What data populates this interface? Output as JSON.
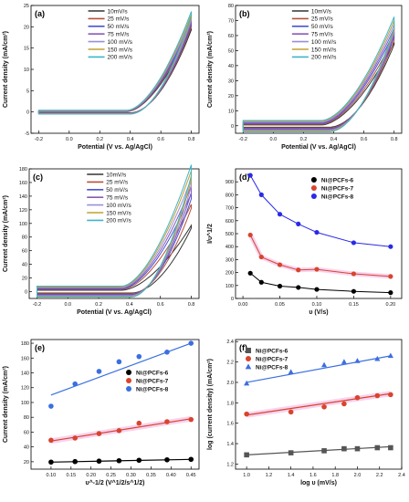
{
  "chart_data": [
    {
      "id": "a",
      "type": "line",
      "panel_label": "(a)",
      "xlabel": "Potential (V vs. Ag/AgCl)",
      "ylabel": "Current density (mA/cm²)",
      "xlim": [
        -0.25,
        0.85
      ],
      "ylim": [
        -5,
        25
      ],
      "xticks": [
        -0.2,
        0.0,
        0.2,
        0.4,
        0.6,
        0.8
      ],
      "yticks": [
        -5,
        0,
        5,
        10,
        15,
        20,
        25
      ],
      "legend": "top-left",
      "legend_entries": [
        "10mV/s",
        "25 mV/s",
        "50 mV/s",
        "75 mV/s",
        "100 mV/s",
        "150 mV/s",
        "200 mV/s"
      ],
      "colors": [
        "#333333",
        "#b5523b",
        "#4a54d1",
        "#8a5ab5",
        "#9b8fd8",
        "#c2a032",
        "#3fb5c8"
      ],
      "curve": {
        "x0": -0.2,
        "onset": 0.38,
        "xend": 0.8,
        "ends": [
          19.5,
          20.2,
          20.8,
          21.4,
          22.0,
          22.6,
          23.2
        ],
        "base_fwd": [
          0.1,
          0.15,
          0.2,
          0.25,
          0.3,
          0.35,
          0.4
        ],
        "base_rev": [
          -0.2,
          -0.25,
          -0.3,
          -0.35,
          -0.4,
          -0.45,
          -0.5
        ],
        "rev_shift": 0.02
      }
    },
    {
      "id": "b",
      "type": "line",
      "panel_label": "(b)",
      "xlabel": "Potential (V vs. Ag/AgCl)",
      "ylabel": "Current density (mA/cm²)",
      "xlim": [
        -0.25,
        0.85
      ],
      "ylim": [
        -5,
        80
      ],
      "xticks": [
        -0.2,
        0.0,
        0.2,
        0.4,
        0.6,
        0.8
      ],
      "yticks": [
        0,
        10,
        20,
        30,
        40,
        50,
        60,
        70,
        80
      ],
      "legend": "top-left",
      "legend_entries": [
        "10mV/s",
        "25 mV/s",
        "50 mV/s",
        "75 mV/s",
        "100 mV/s",
        "150 mV/s",
        "200 mV/s"
      ],
      "colors": [
        "#333333",
        "#b5523b",
        "#4a54d1",
        "#8a5ab5",
        "#9b8fd8",
        "#c2a032",
        "#3fb5c8"
      ],
      "curve": {
        "x0": -0.2,
        "onset": 0.32,
        "xend": 0.8,
        "ends": [
          55,
          58,
          61,
          63,
          65,
          67,
          69
        ],
        "base_fwd": [
          0.5,
          1.0,
          1.5,
          2.0,
          2.5,
          3.0,
          3.5
        ],
        "base_rev": [
          -1.0,
          -1.5,
          -2.0,
          -2.5,
          -3.0,
          -3.5,
          -4.0
        ],
        "rev_shift": 0.05
      }
    },
    {
      "id": "c",
      "type": "line",
      "panel_label": "(c)",
      "xlabel": "Potential (V vs. Ag/AgCl)",
      "ylabel": "Current density (mA/cm²)",
      "xlim": [
        -0.25,
        0.85
      ],
      "ylim": [
        -10,
        180
      ],
      "xticks": [
        -0.2,
        0.0,
        0.2,
        0.4,
        0.6,
        0.8
      ],
      "yticks": [
        0,
        20,
        40,
        60,
        80,
        100,
        120,
        140,
        160,
        180
      ],
      "legend": "top-left",
      "legend_entries": [
        "10mV/s",
        "25 mV/s",
        "50 mV/s",
        "75 mV/s",
        "100 mV/s",
        "150 mV/s",
        "200 mV/s"
      ],
      "colors": [
        "#333333",
        "#b5523b",
        "#4a54d1",
        "#8a5ab5",
        "#9b8fd8",
        "#c2a032",
        "#3fb5c8"
      ],
      "curve": {
        "x0": -0.2,
        "onset": 0.35,
        "xend": 0.8,
        "ends": [
          95,
          125,
          140,
          150,
          160,
          170,
          178
        ],
        "base_fwd": [
          2,
          3,
          4,
          5,
          6,
          7,
          8
        ],
        "base_rev": [
          -2,
          -3,
          -4,
          -5,
          -6,
          -7,
          -8
        ],
        "rev_shift": 0.06
      }
    },
    {
      "id": "d",
      "type": "line",
      "panel_label": "(d)",
      "xlabel": "υ (V/s)",
      "ylabel": "I/υ^1/2",
      "xlim": [
        -0.01,
        0.215
      ],
      "ylim": [
        0,
        1000
      ],
      "xticks": [
        0.0,
        0.05,
        0.1,
        0.15,
        0.2
      ],
      "yticks": [
        0,
        100,
        200,
        300,
        400,
        500,
        600,
        700,
        800,
        900
      ],
      "legend": "top-right",
      "series": [
        {
          "name": "Ni@PCFs-6",
          "color": "#000000",
          "x": [
            0.01,
            0.025,
            0.05,
            0.075,
            0.1,
            0.15,
            0.2
          ],
          "values": [
            195,
            125,
            95,
            85,
            70,
            55,
            45
          ]
        },
        {
          "name": "Ni@PCFs-7",
          "color": "#d9442e",
          "x": [
            0.01,
            0.025,
            0.05,
            0.075,
            0.1,
            0.15,
            0.2
          ],
          "values": [
            490,
            320,
            260,
            220,
            225,
            190,
            170
          ]
        },
        {
          "name": "Ni@PCFs-8",
          "color": "#2a2ae6",
          "x": [
            0.01,
            0.025,
            0.05,
            0.075,
            0.1,
            0.15,
            0.2
          ],
          "values": [
            950,
            800,
            650,
            575,
            510,
            430,
            400
          ]
        }
      ]
    },
    {
      "id": "e",
      "type": "scatter",
      "panel_label": "(e)",
      "xlabel": "υ^-1/2 (V^1/2/s^1/2)",
      "ylabel": "Current density (mA/cm²)",
      "xlim": [
        0.05,
        0.47
      ],
      "ylim": [
        10,
        185
      ],
      "xticks": [
        0.1,
        0.15,
        0.2,
        0.25,
        0.3,
        0.35,
        0.4,
        0.45
      ],
      "yticks": [
        20,
        40,
        60,
        80,
        100,
        120,
        140,
        160,
        180
      ],
      "legend": "middle-right",
      "series": [
        {
          "name": "Ni@PCFs-6",
          "color": "#000000",
          "x": [
            0.1,
            0.16,
            0.22,
            0.27,
            0.32,
            0.39,
            0.45
          ],
          "values": [
            19.5,
            20.2,
            20.8,
            21.4,
            22.0,
            22.6,
            23.2
          ],
          "fit": [
            19.5,
            23.2
          ]
        },
        {
          "name": "Ni@PCFs-7",
          "color": "#d9442e",
          "x": [
            0.1,
            0.16,
            0.22,
            0.27,
            0.32,
            0.39,
            0.45
          ],
          "values": [
            49,
            52,
            58,
            62,
            72,
            74,
            77
          ],
          "fit": [
            48,
            78
          ]
        },
        {
          "name": "Ni@PCFs-8",
          "color": "#3b6fe0",
          "x": [
            0.1,
            0.16,
            0.22,
            0.27,
            0.32,
            0.39,
            0.45
          ],
          "values": [
            95,
            125,
            142,
            155,
            162,
            168,
            180
          ],
          "fit": [
            110,
            180
          ]
        }
      ]
    },
    {
      "id": "f",
      "type": "scatter",
      "panel_label": "(f)",
      "xlabel": "log υ (mV/s)",
      "ylabel": "log (current density) (mA/cm²)",
      "xlim": [
        0.9,
        2.4
      ],
      "ylim": [
        1.15,
        2.42
      ],
      "xticks": [
        1.0,
        1.2,
        1.4,
        1.6,
        1.8,
        2.0,
        2.2,
        2.4
      ],
      "yticks": [
        1.2,
        1.4,
        1.6,
        1.8,
        2.0,
        2.2,
        2.4
      ],
      "legend": "top-left",
      "series": [
        {
          "name": "Ni@PCFs-6",
          "color": "#555555",
          "marker": "square",
          "x": [
            1.0,
            1.4,
            1.7,
            1.88,
            2.0,
            2.18,
            2.3
          ],
          "values": [
            1.29,
            1.31,
            1.33,
            1.35,
            1.35,
            1.36,
            1.36
          ],
          "fit": [
            1.29,
            1.37
          ]
        },
        {
          "name": "Ni@PCFs-7",
          "color": "#d9442e",
          "marker": "circle",
          "x": [
            1.0,
            1.4,
            1.7,
            1.88,
            2.0,
            2.18,
            2.3
          ],
          "values": [
            1.69,
            1.71,
            1.76,
            1.79,
            1.85,
            1.87,
            1.88
          ],
          "fit": [
            1.68,
            1.89
          ]
        },
        {
          "name": "Ni@PCFs-8",
          "color": "#3b6fe0",
          "marker": "triangle",
          "x": [
            1.0,
            1.4,
            1.7,
            1.88,
            2.0,
            2.18,
            2.3
          ],
          "values": [
            1.99,
            2.1,
            2.17,
            2.2,
            2.21,
            2.23,
            2.26
          ],
          "fit": [
            2.0,
            2.26
          ]
        }
      ]
    }
  ]
}
